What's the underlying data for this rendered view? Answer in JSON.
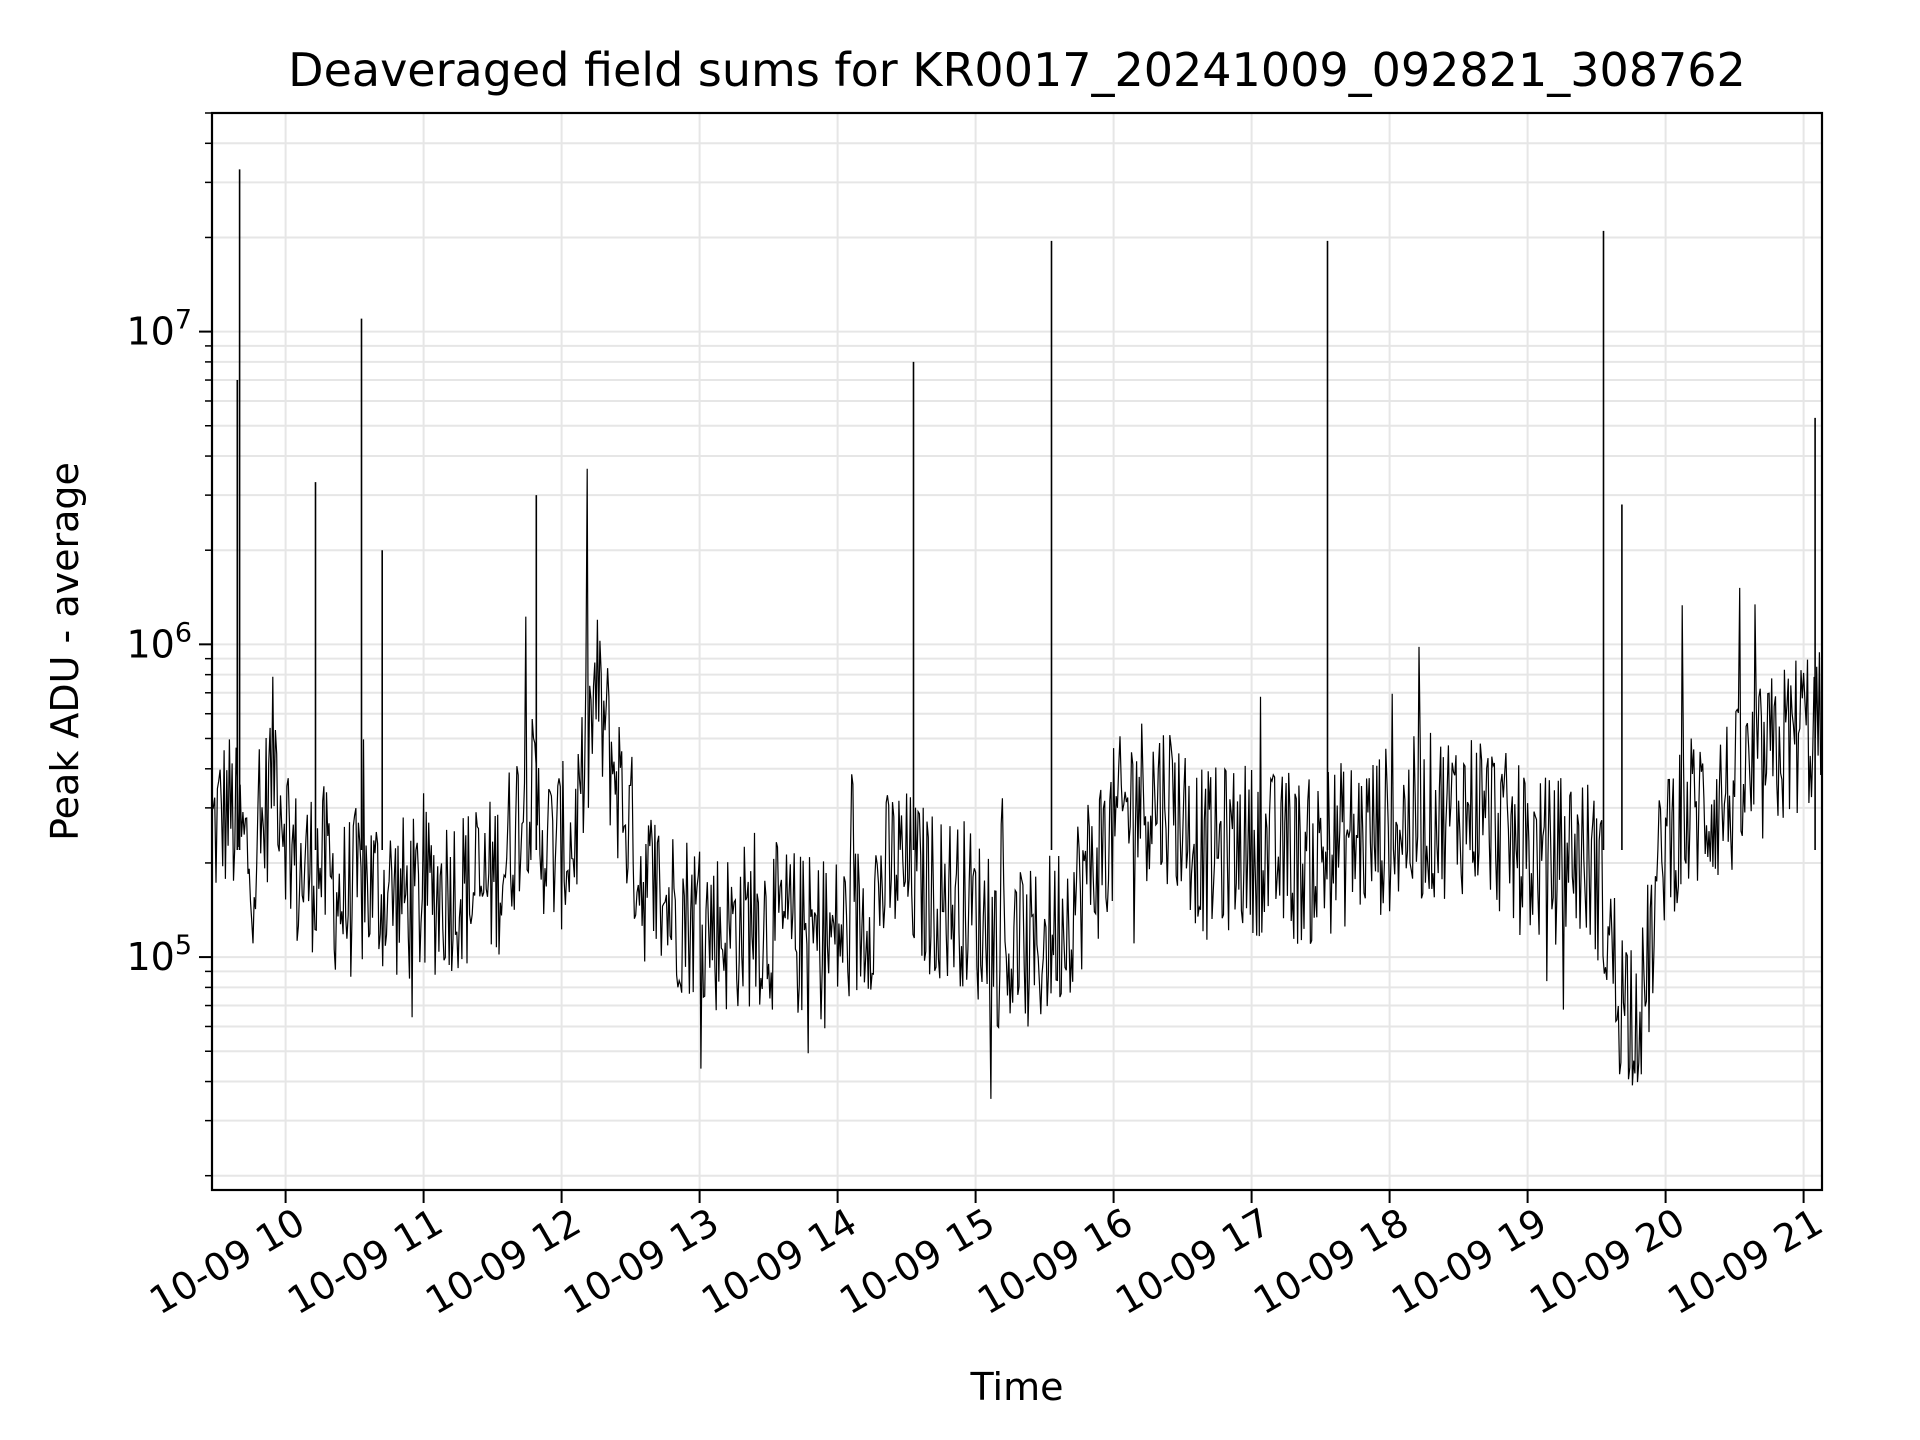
{
  "chart_data": {
    "type": "line",
    "title": "Deaveraged field sums for KR0017_20241009_092821_308762",
    "xlabel": "Time",
    "ylabel": "Peak ADU - average",
    "yscale": "log",
    "ylim": [
      18000,
      50000000
    ],
    "xlim": [
      "2024-10-09 09:28",
      "2024-10-09 21:08"
    ],
    "grid": true,
    "line_color": "#000000",
    "grid_color": "#e6e6e6",
    "x_ticks": [
      {
        "label": "10-09 10",
        "value": "2024-10-09 10:00"
      },
      {
        "label": "10-09 11",
        "value": "2024-10-09 11:00"
      },
      {
        "label": "10-09 12",
        "value": "2024-10-09 12:00"
      },
      {
        "label": "10-09 13",
        "value": "2024-10-09 13:00"
      },
      {
        "label": "10-09 14",
        "value": "2024-10-09 14:00"
      },
      {
        "label": "10-09 15",
        "value": "2024-10-09 15:00"
      },
      {
        "label": "10-09 16",
        "value": "2024-10-09 16:00"
      },
      {
        "label": "10-09 17",
        "value": "2024-10-09 17:00"
      },
      {
        "label": "10-09 18",
        "value": "2024-10-09 18:00"
      },
      {
        "label": "10-09 19",
        "value": "2024-10-09 19:00"
      },
      {
        "label": "10-09 20",
        "value": "2024-10-09 20:00"
      },
      {
        "label": "10-09 21",
        "value": "2024-10-09 21:00"
      }
    ],
    "y_ticks": [
      {
        "base": "10",
        "exp": "5",
        "value": 100000
      },
      {
        "base": "10",
        "exp": "6",
        "value": 1000000
      },
      {
        "base": "10",
        "exp": "7",
        "value": 10000000
      }
    ],
    "series": [
      {
        "x": [
          "2024-10-09 09:28",
          "2024-10-09 09:35",
          "2024-10-09 09:42",
          "2024-10-09 09:48",
          "2024-10-09 09:55",
          "2024-10-09 10:05",
          "2024-10-09 10:15",
          "2024-10-09 10:25",
          "2024-10-09 10:35",
          "2024-10-09 10:45",
          "2024-10-09 10:55",
          "2024-10-09 11:05",
          "2024-10-09 11:15",
          "2024-10-09 11:25",
          "2024-10-09 11:35",
          "2024-10-09 11:45",
          "2024-10-09 11:55",
          "2024-10-09 12:05",
          "2024-10-09 12:15",
          "2024-10-09 12:25",
          "2024-10-09 12:35",
          "2024-10-09 12:45",
          "2024-10-09 12:55",
          "2024-10-09 13:10",
          "2024-10-09 13:25",
          "2024-10-09 13:40",
          "2024-10-09 13:55",
          "2024-10-09 14:10",
          "2024-10-09 14:25",
          "2024-10-09 14:40",
          "2024-10-09 14:55",
          "2024-10-09 15:10",
          "2024-10-09 15:25",
          "2024-10-09 15:40",
          "2024-10-09 15:55",
          "2024-10-09 16:10",
          "2024-10-09 16:25",
          "2024-10-09 16:40",
          "2024-10-09 16:55",
          "2024-10-09 17:10",
          "2024-10-09 17:25",
          "2024-10-09 17:40",
          "2024-10-09 17:55",
          "2024-10-09 18:10",
          "2024-10-09 18:25",
          "2024-10-09 18:40",
          "2024-10-09 18:55",
          "2024-10-09 19:10",
          "2024-10-09 19:20",
          "2024-10-09 19:30",
          "2024-10-09 19:40",
          "2024-10-09 19:50",
          "2024-10-09 20:00",
          "2024-10-09 20:15",
          "2024-10-09 20:30",
          "2024-10-09 20:45",
          "2024-10-09 21:00",
          "2024-10-09 21:08"
        ],
        "y": [
          250000,
          300000,
          220000,
          200000,
          450000,
          180000,
          200000,
          150000,
          170000,
          160000,
          150000,
          160000,
          170000,
          160000,
          200000,
          350000,
          220000,
          230000,
          700000,
          350000,
          180000,
          150000,
          140000,
          120000,
          130000,
          120000,
          110000,
          130000,
          200000,
          160000,
          150000,
          110000,
          100000,
          140000,
          220000,
          330000,
          320000,
          210000,
          230000,
          210000,
          200000,
          230000,
          250000,
          270000,
          290000,
          300000,
          220000,
          200000,
          220000,
          190000,
          75000,
          70000,
          250000,
          300000,
          330000,
          420000,
          550000,
          520000
        ]
      }
    ],
    "spikes": [
      {
        "x": "2024-10-09 09:40",
        "y": 33000000
      },
      {
        "x": "2024-10-09 09:39",
        "y": 7000000
      },
      {
        "x": "2024-10-09 10:13",
        "y": 3300000
      },
      {
        "x": "2024-10-09 10:33",
        "y": 11000000
      },
      {
        "x": "2024-10-09 10:42",
        "y": 2000000
      },
      {
        "x": "2024-10-09 11:49",
        "y": 3000000
      },
      {
        "x": "2024-10-09 14:33",
        "y": 8000000
      },
      {
        "x": "2024-10-09 15:33",
        "y": 19500000
      },
      {
        "x": "2024-10-09 17:33",
        "y": 19500000
      },
      {
        "x": "2024-10-09 19:33",
        "y": 21000000
      },
      {
        "x": "2024-10-09 19:41",
        "y": 2800000
      },
      {
        "x": "2024-10-09 21:05",
        "y": 5300000
      }
    ]
  }
}
